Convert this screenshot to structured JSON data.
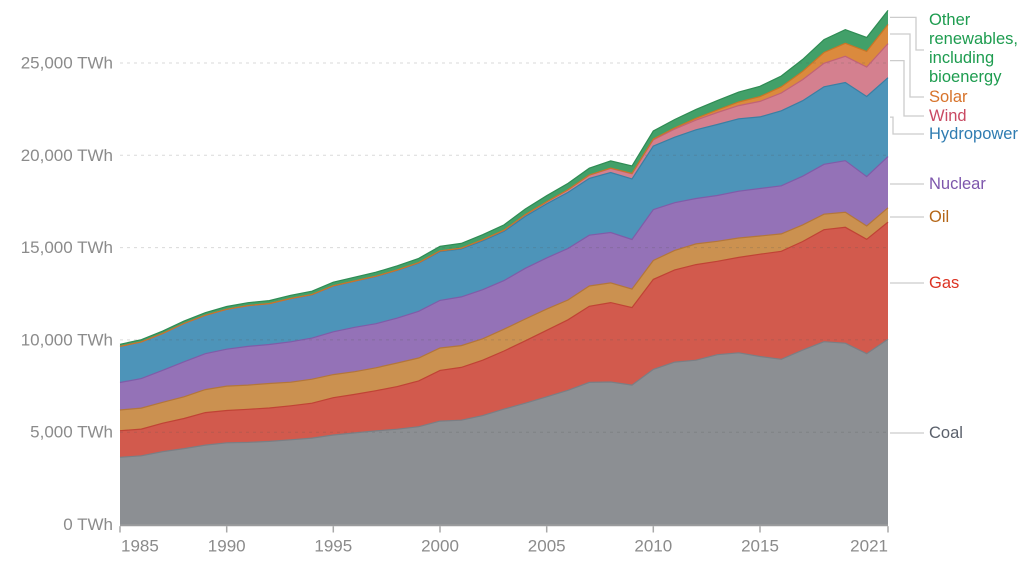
{
  "chart_data": {
    "type": "area",
    "stacked": true,
    "title": "",
    "unit": "TWh",
    "x_label": "",
    "y_label": "",
    "x": [
      1985,
      1986,
      1987,
      1988,
      1989,
      1990,
      1991,
      1992,
      1993,
      1994,
      1995,
      1996,
      1997,
      1998,
      1999,
      2000,
      2001,
      2002,
      2003,
      2004,
      2005,
      2006,
      2007,
      2008,
      2009,
      2010,
      2011,
      2012,
      2013,
      2014,
      2015,
      2016,
      2017,
      2018,
      2019,
      2020,
      2021
    ],
    "x_ticks": [
      1985,
      1990,
      1995,
      2000,
      2005,
      2010,
      2015,
      2021
    ],
    "y_ticks": [
      {
        "value": 0,
        "label": "0 TWh"
      },
      {
        "value": 5000,
        "label": "5,000 TWh"
      },
      {
        "value": 10000,
        "label": "10,000 TWh"
      },
      {
        "value": 15000,
        "label": "15,000 TWh"
      },
      {
        "value": 20000,
        "label": "20,000 TWh"
      },
      {
        "value": 25000,
        "label": "25,000 TWh"
      }
    ],
    "ylim": [
      0,
      28500
    ],
    "xlim": [
      1985,
      2021
    ],
    "grid": "dashed-horizontal",
    "legend_position": "right-with-leader-lines",
    "stack_order": "bottom-to-top",
    "series": [
      {
        "id": "coal",
        "name": "Coal",
        "legend_lines": [
          "Coal"
        ],
        "color": "#5a606b",
        "fill": "#8c8f93",
        "stroke": "#7b7e84",
        "values": [
          3640,
          3720,
          3950,
          4110,
          4300,
          4425,
          4450,
          4500,
          4590,
          4680,
          4850,
          4960,
          5070,
          5160,
          5300,
          5600,
          5650,
          5900,
          6250,
          6570,
          6920,
          7270,
          7700,
          7720,
          7550,
          8400,
          8800,
          8900,
          9200,
          9300,
          9100,
          8950,
          9450,
          9900,
          9820,
          9250,
          10040
        ]
      },
      {
        "id": "gas",
        "name": "Gas",
        "legend_lines": [
          "Gas"
        ],
        "color": "#dc3222",
        "fill": "#d25a4d",
        "stroke": "#c04335",
        "values": [
          1440,
          1450,
          1540,
          1630,
          1760,
          1750,
          1790,
          1810,
          1840,
          1890,
          2020,
          2090,
          2180,
          2310,
          2480,
          2750,
          2860,
          3000,
          3150,
          3380,
          3600,
          3820,
          4120,
          4300,
          4200,
          4880,
          4990,
          5180,
          5060,
          5170,
          5540,
          5850,
          5880,
          6070,
          6280,
          6200,
          6340
        ]
      },
      {
        "id": "oil",
        "name": "Oil",
        "legend_lines": [
          "Oil"
        ],
        "color": "#b46617",
        "fill": "#cb9150",
        "stroke": "#b3763a",
        "values": [
          1125,
          1135,
          1130,
          1180,
          1250,
          1320,
          1310,
          1330,
          1280,
          1300,
          1250,
          1230,
          1240,
          1280,
          1240,
          1210,
          1180,
          1160,
          1180,
          1180,
          1150,
          1070,
          1100,
          1070,
          1000,
          1020,
          1060,
          1120,
          1080,
          1050,
          990,
          940,
          900,
          840,
          810,
          720,
          775
        ]
      },
      {
        "id": "nuclear",
        "name": "Nuclear",
        "legend_lines": [
          "Nuclear"
        ],
        "color": "#7d56ac",
        "fill": "#9472b7",
        "stroke": "#7f5ca8",
        "values": [
          1488,
          1596,
          1733,
          1893,
          1945,
          2000,
          2096,
          2110,
          2185,
          2225,
          2320,
          2400,
          2390,
          2430,
          2530,
          2580,
          2640,
          2660,
          2635,
          2750,
          2770,
          2790,
          2750,
          2730,
          2690,
          2760,
          2580,
          2460,
          2480,
          2535,
          2570,
          2610,
          2640,
          2700,
          2796,
          2674,
          2776
        ]
      },
      {
        "id": "hydropower",
        "name": "Hydropower",
        "legend_lines": [
          "Hydropower"
        ],
        "color": "#2f7cb1",
        "fill": "#4d94b9",
        "stroke": "#3a7fa3",
        "values": [
          1954,
          1990,
          2000,
          2075,
          2075,
          2160,
          2210,
          2210,
          2340,
          2350,
          2480,
          2500,
          2560,
          2590,
          2610,
          2650,
          2600,
          2650,
          2660,
          2810,
          2930,
          3040,
          3080,
          3250,
          3280,
          3440,
          3550,
          3720,
          3850,
          3920,
          3880,
          4060,
          4090,
          4200,
          4235,
          4340,
          4274
        ]
      },
      {
        "id": "wind",
        "name": "Wind",
        "legend_lines": [
          "Wind"
        ],
        "color": "#c94a63",
        "fill": "#d4808f",
        "stroke": "#c16376",
        "values": [
          0,
          0,
          0,
          1,
          2,
          4,
          4,
          5,
          6,
          7,
          8,
          9,
          12,
          16,
          21,
          31,
          38,
          52,
          63,
          85,
          104,
          133,
          171,
          221,
          276,
          342,
          437,
          527,
          646,
          717,
          838,
          967,
          1140,
          1273,
          1420,
          1597,
          1848
        ]
      },
      {
        "id": "solar",
        "name": "Solar",
        "legend_lines": [
          "Solar"
        ],
        "color": "#d7732b",
        "fill": "#db8a3d",
        "stroke": "#c97526",
        "values": [
          0,
          0,
          0,
          0,
          0,
          0,
          0,
          0,
          1,
          1,
          1,
          1,
          1,
          1,
          1,
          1,
          2,
          2,
          3,
          4,
          5,
          7,
          9,
          14,
          21,
          34,
          65,
          100,
          139,
          198,
          260,
          332,
          453,
          584,
          704,
          846,
          1033
        ]
      },
      {
        "id": "other_renewables",
        "name": "Other renewables, including bioenergy",
        "legend_lines": [
          "Other",
          "renewables,",
          "including",
          "bioenergy"
        ],
        "color": "#1d9c4f",
        "fill": "#42a069",
        "stroke": "#2f8c54",
        "values": [
          115,
          120,
          125,
          130,
          140,
          150,
          155,
          165,
          175,
          185,
          195,
          205,
          215,
          225,
          235,
          250,
          260,
          275,
          290,
          310,
          330,
          350,
          370,
          390,
          410,
          440,
          460,
          480,
          510,
          535,
          560,
          585,
          640,
          700,
          745,
          755,
          766
        ]
      }
    ],
    "legend_display_order_top_to_bottom": [
      "other_renewables",
      "solar",
      "wind",
      "hydropower",
      "nuclear",
      "oil",
      "gas",
      "coal"
    ]
  }
}
